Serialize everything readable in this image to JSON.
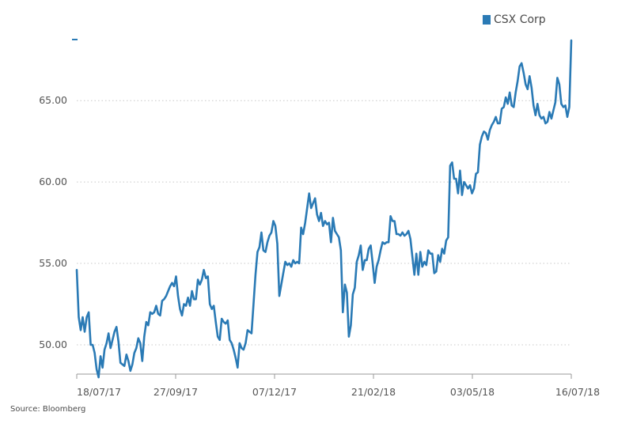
{
  "chart_data": {
    "type": "line",
    "title": "",
    "xlabel": "",
    "ylabel": "",
    "ylim": [
      48.2,
      68.8
    ],
    "y_ticks": [
      50,
      55,
      60,
      65
    ],
    "y_tick_labels": [
      "50.00",
      "55.00",
      "60.00",
      "65.00"
    ],
    "x_tick_labels": [
      "18/07/17",
      "27/09/17",
      "07/12/17",
      "21/02/18",
      "03/05/18",
      "16/07/18"
    ],
    "grid": "horizontal dotted",
    "legend_position": "top-right",
    "series": [
      {
        "name": "CSX Corp",
        "color": "#2a7ab5",
        "values": [
          54.6,
          51.7,
          50.9,
          51.7,
          50.8,
          51.7,
          52.0,
          50.0,
          50.0,
          49.5,
          48.5,
          48.0,
          49.3,
          48.6,
          49.7,
          50.1,
          50.7,
          49.8,
          50.3,
          50.8,
          51.1,
          50.2,
          48.9,
          48.8,
          48.7,
          49.4,
          49.0,
          48.4,
          48.8,
          49.5,
          49.8,
          50.4,
          50.1,
          49.0,
          50.5,
          51.4,
          51.2,
          52.0,
          51.9,
          52.0,
          52.4,
          51.9,
          51.8,
          52.7,
          52.8,
          53.0,
          53.3,
          53.6,
          53.8,
          53.6,
          54.2,
          53.0,
          52.2,
          51.8,
          52.5,
          52.4,
          52.9,
          52.4,
          53.3,
          52.8,
          52.8,
          54.0,
          53.7,
          54.0,
          54.6,
          54.1,
          54.2,
          52.5,
          52.2,
          52.4,
          51.4,
          50.5,
          50.3,
          51.6,
          51.4,
          51.3,
          51.5,
          50.3,
          50.1,
          49.7,
          49.2,
          48.6,
          50.1,
          49.8,
          49.7,
          50.1,
          50.9,
          50.8,
          50.7,
          52.5,
          54.3,
          55.7,
          56.0,
          56.9,
          55.8,
          55.7,
          56.3,
          56.7,
          56.9,
          57.6,
          57.3,
          56.2,
          53.0,
          53.7,
          54.4,
          55.1,
          54.9,
          55.0,
          54.8,
          55.2,
          55.0,
          55.1,
          55.0,
          57.2,
          56.8,
          57.5,
          58.4,
          59.3,
          58.4,
          58.7,
          59.0,
          58.0,
          57.6,
          58.1,
          57.3,
          57.6,
          57.4,
          57.5,
          56.3,
          57.8,
          57.0,
          56.8,
          56.6,
          55.8,
          52.0,
          53.7,
          53.2,
          50.5,
          51.2,
          53.1,
          53.5,
          55.1,
          55.5,
          56.1,
          54.6,
          55.2,
          55.2,
          55.9,
          56.1,
          55.0,
          53.8,
          54.8,
          55.2,
          55.8,
          56.3,
          56.2,
          56.3,
          56.3,
          57.9,
          57.6,
          57.6,
          56.8,
          56.8,
          56.7,
          56.9,
          56.7,
          56.8,
          57.0,
          56.5,
          55.4,
          54.3,
          55.6,
          54.3,
          55.7,
          54.8,
          55.1,
          54.9,
          55.8,
          55.6,
          55.6,
          54.4,
          54.5,
          55.5,
          55.1,
          55.9,
          55.6,
          56.4,
          56.6,
          61.0,
          61.2,
          60.2,
          60.2,
          59.3,
          60.7,
          59.2,
          60.0,
          59.8,
          59.6,
          59.8,
          59.3,
          59.6,
          60.5,
          60.6,
          62.3,
          62.8,
          63.1,
          63.0,
          62.6,
          63.2,
          63.5,
          63.7,
          64.0,
          63.6,
          63.6,
          64.5,
          64.6,
          65.2,
          64.8,
          65.5,
          64.7,
          64.6,
          65.5,
          66.2,
          67.1,
          67.3,
          66.7,
          66.0,
          65.7,
          66.5,
          65.8,
          64.7,
          64.1,
          64.8,
          64.1,
          63.9,
          64.0,
          63.6,
          63.7,
          64.3,
          63.9,
          64.4,
          64.9,
          66.4,
          66.0,
          64.8,
          64.6,
          64.7,
          64.0,
          64.6,
          68.7
        ]
      }
    ]
  },
  "legend": {
    "label": "CSX Corp"
  },
  "source": "Source: Bloomberg"
}
